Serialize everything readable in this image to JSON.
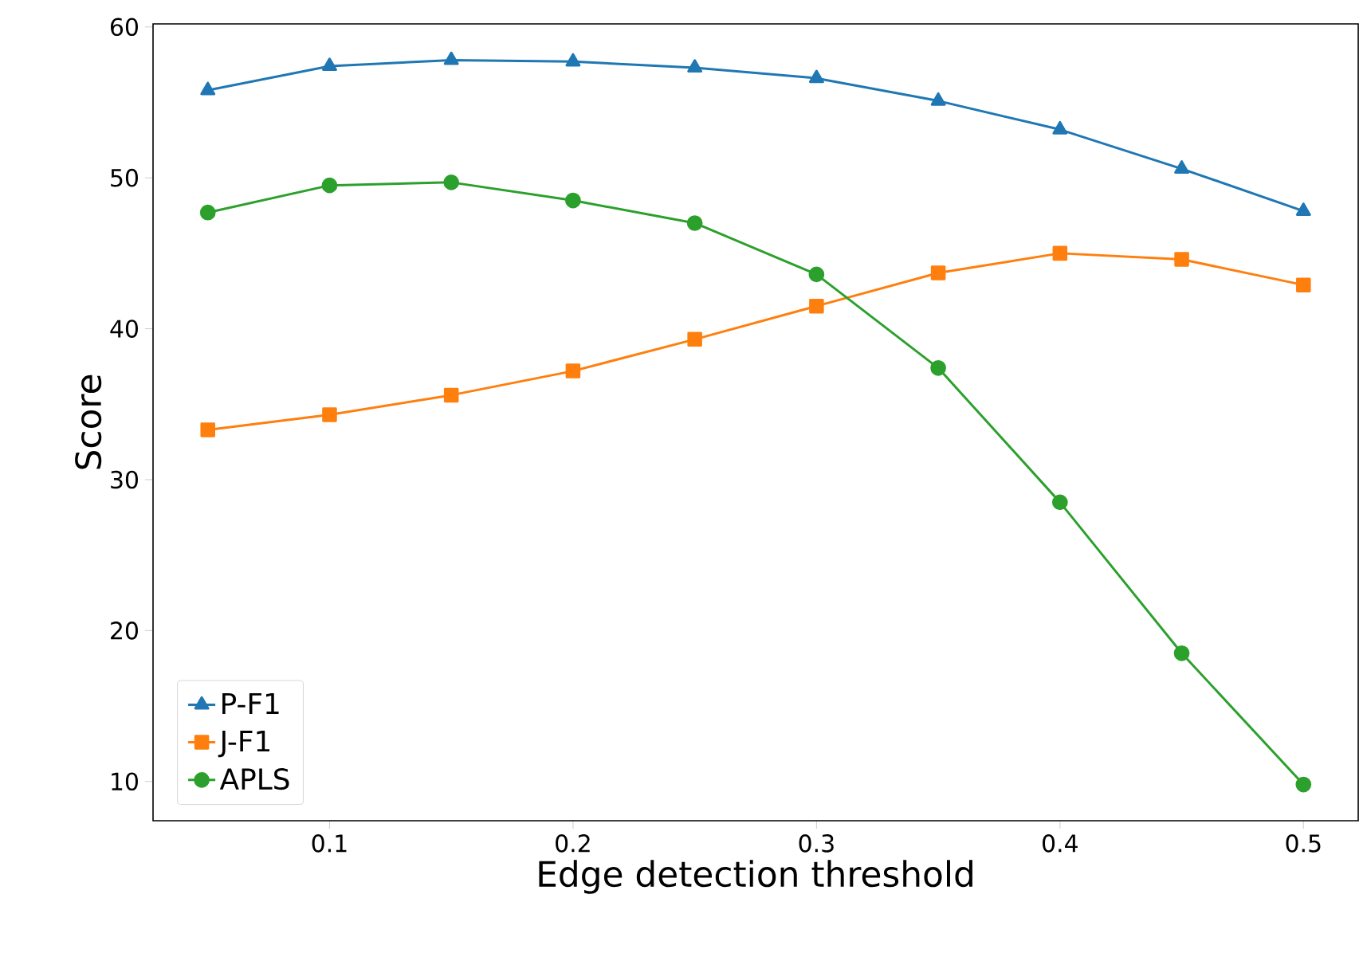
{
  "chart_data": {
    "type": "line",
    "xlabel": "Edge detection threshold",
    "ylabel": "Score",
    "x": [
      0.05,
      0.1,
      0.15,
      0.2,
      0.25,
      0.3,
      0.35,
      0.4,
      0.45,
      0.5
    ],
    "series": [
      {
        "name": "P-F1",
        "color": "#1f77b4",
        "marker": "triangle",
        "values": [
          55.8,
          57.4,
          57.8,
          57.7,
          57.3,
          56.6,
          55.1,
          53.2,
          50.6,
          47.8
        ]
      },
      {
        "name": "J-F1",
        "color": "#ff7f0e",
        "marker": "square",
        "values": [
          33.3,
          34.3,
          35.6,
          37.2,
          39.3,
          41.5,
          43.7,
          45.0,
          44.6,
          42.9
        ]
      },
      {
        "name": "APLS",
        "color": "#2ca02c",
        "marker": "circle",
        "values": [
          47.7,
          49.5,
          49.7,
          48.5,
          47.0,
          43.6,
          37.4,
          28.5,
          18.5,
          9.8
        ]
      }
    ],
    "xlim": [
      0.0275,
      0.5225
    ],
    "ylim": [
      7.4,
      60.2
    ],
    "xticks": [
      0.1,
      0.2,
      0.3,
      0.4,
      0.5
    ],
    "yticks": [
      10,
      20,
      30,
      40,
      50,
      60
    ],
    "grid": false,
    "legend": "bottom left",
    "line_style": "solid"
  }
}
